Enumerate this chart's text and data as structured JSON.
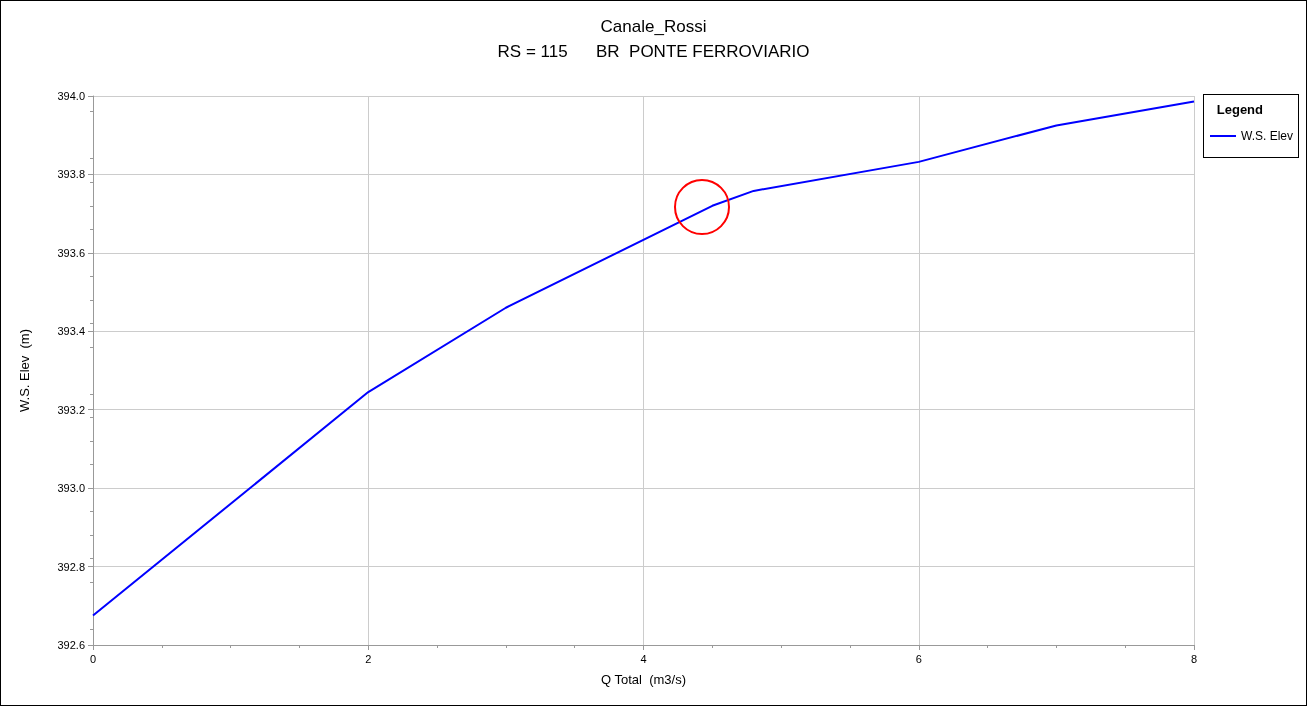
{
  "chart_data": {
    "type": "line",
    "title": "Canale_Rossi",
    "subtitle": "RS = 115      BR  PONTE FERROVIARIO",
    "xlabel": "Q Total  (m3/s)",
    "ylabel": "W.S. Elev  (m)",
    "legend_title": "Legend",
    "legend": "right",
    "x": [
      0,
      2,
      3,
      4.5,
      4.8,
      6,
      7,
      8
    ],
    "series": [
      {
        "name": "W.S. Elev",
        "color": "#0000ff",
        "values": [
          392.675,
          393.245,
          393.46,
          393.72,
          393.758,
          393.832,
          393.925,
          393.986
        ]
      }
    ],
    "xlim": [
      0,
      8
    ],
    "xticks": [
      0,
      2,
      4,
      6,
      8
    ],
    "ylim": [
      392.6,
      394
    ],
    "yticks": [
      {
        "value": 392.6,
        "label": "392.6"
      },
      {
        "value": 392.8,
        "label": "392.8"
      },
      {
        "value": 393,
        "label": "393.0"
      },
      {
        "value": 393.2,
        "label": "393.2"
      },
      {
        "value": 393.4,
        "label": "393.4"
      },
      {
        "value": 393.6,
        "label": "393.6"
      },
      {
        "value": 393.8,
        "label": "393.8"
      },
      {
        "value": 394,
        "label": "394.0"
      }
    ],
    "grid": true,
    "marker": "none",
    "line_style": "solid"
  }
}
